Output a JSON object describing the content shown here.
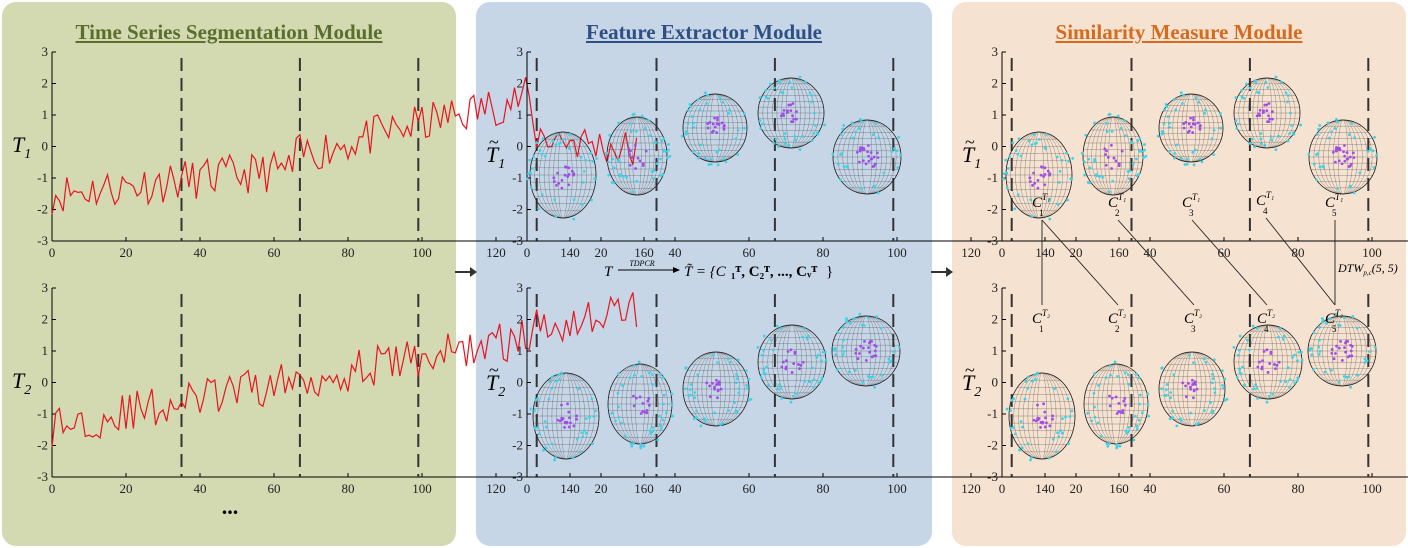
{
  "modules": [
    {
      "title": "Time Series Segmentation Module",
      "color": "#5b6e2e"
    },
    {
      "title": "Feature Extractor Module",
      "color": "#2f4f82"
    },
    {
      "title": "Similarity Measure Module",
      "color": "#d66a1f"
    }
  ],
  "series_labels": {
    "t1": "T",
    "t1_sub": "1",
    "t2": "T",
    "t2_sub": "2",
    "tilde": "~"
  },
  "axis": {
    "x_ticks": [
      "0",
      "20",
      "40",
      "60",
      "80",
      "100",
      "120",
      "140",
      "160"
    ],
    "y_ticks": [
      "3",
      "2",
      "1",
      "0",
      "-1",
      "-2",
      "-3"
    ],
    "boundaries": [
      35,
      67,
      99,
      131
    ]
  },
  "ellipsis": "...",
  "formula": {
    "lhs": "T",
    "arrow_label": "TDPCR",
    "rhs": "T̃ = {C",
    "rhs_end": "}"
  },
  "cluster_labels_t1": [
    "C1",
    "C2",
    "C3",
    "C4",
    "C5"
  ],
  "cluster_labels_t2": [
    "C1",
    "C2",
    "C3",
    "C4",
    "C5"
  ],
  "dtw_label": "DTW",
  "dtw_args": "(5, 5)",
  "colors": {
    "series": "#e8141e",
    "cyan": "#3fd2e6",
    "purple": "#a24de6",
    "axis": "#000000"
  }
}
